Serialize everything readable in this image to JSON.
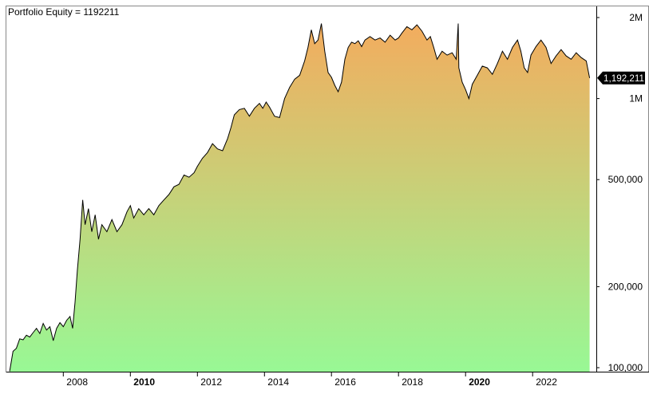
{
  "title": "Portfolio Equity = 1192211",
  "colors": {
    "background": "#ffffff",
    "line": "#000000",
    "fill_top": "#f3ac5e",
    "fill_bottom": "#98f895",
    "value_tag_bg": "#000000",
    "value_tag_text": "#ffffff"
  },
  "chart_data": {
    "type": "area",
    "title": "Portfolio Equity = 1192211",
    "xlabel": "",
    "ylabel": "",
    "y_scale": "log",
    "ylim": [
      95000,
      2150000
    ],
    "xlim": [
      2006.35,
      2023.9
    ],
    "grid": false,
    "legend": "none",
    "x_ticks": [
      {
        "value": 2008,
        "label": "2008",
        "bold": false
      },
      {
        "value": 2010,
        "label": "2010",
        "bold": true
      },
      {
        "value": 2012,
        "label": "2012",
        "bold": false
      },
      {
        "value": 2014,
        "label": "2014",
        "bold": false
      },
      {
        "value": 2016,
        "label": "2016",
        "bold": false
      },
      {
        "value": 2018,
        "label": "2018",
        "bold": false
      },
      {
        "value": 2020,
        "label": "2020",
        "bold": true
      },
      {
        "value": 2022,
        "label": "2022",
        "bold": false
      }
    ],
    "y_ticks": [
      {
        "value": 100000,
        "label": "100,000"
      },
      {
        "value": 200000,
        "label": "200,000"
      },
      {
        "value": 500000,
        "label": "500,000"
      },
      {
        "value": 1000000,
        "label": "1M"
      },
      {
        "value": 2000000,
        "label": "2M"
      }
    ],
    "last_value": {
      "value": 1192211,
      "label": "1,192,211"
    },
    "series": [
      {
        "points": [
          [
            2006.4,
            97000
          ],
          [
            2006.5,
            115000
          ],
          [
            2006.6,
            118000
          ],
          [
            2006.7,
            128000
          ],
          [
            2006.8,
            127000
          ],
          [
            2006.9,
            132000
          ],
          [
            2007.0,
            130000
          ],
          [
            2007.1,
            135000
          ],
          [
            2007.2,
            140000
          ],
          [
            2007.3,
            134000
          ],
          [
            2007.4,
            146000
          ],
          [
            2007.5,
            138000
          ],
          [
            2007.6,
            142000
          ],
          [
            2007.7,
            126000
          ],
          [
            2007.8,
            140000
          ],
          [
            2007.9,
            147000
          ],
          [
            2008.0,
            142000
          ],
          [
            2008.1,
            150000
          ],
          [
            2008.2,
            155000
          ],
          [
            2008.28,
            140000
          ],
          [
            2008.35,
            175000
          ],
          [
            2008.42,
            230000
          ],
          [
            2008.5,
            300000
          ],
          [
            2008.58,
            420000
          ],
          [
            2008.65,
            340000
          ],
          [
            2008.75,
            390000
          ],
          [
            2008.85,
            320000
          ],
          [
            2008.95,
            370000
          ],
          [
            2009.05,
            300000
          ],
          [
            2009.15,
            340000
          ],
          [
            2009.3,
            320000
          ],
          [
            2009.45,
            355000
          ],
          [
            2009.6,
            320000
          ],
          [
            2009.75,
            340000
          ],
          [
            2009.9,
            380000
          ],
          [
            2010.0,
            400000
          ],
          [
            2010.1,
            360000
          ],
          [
            2010.25,
            390000
          ],
          [
            2010.4,
            370000
          ],
          [
            2010.55,
            390000
          ],
          [
            2010.7,
            370000
          ],
          [
            2010.85,
            400000
          ],
          [
            2011.0,
            420000
          ],
          [
            2011.15,
            440000
          ],
          [
            2011.3,
            470000
          ],
          [
            2011.45,
            480000
          ],
          [
            2011.6,
            520000
          ],
          [
            2011.75,
            510000
          ],
          [
            2011.9,
            530000
          ],
          [
            2012.0,
            560000
          ],
          [
            2012.15,
            600000
          ],
          [
            2012.3,
            630000
          ],
          [
            2012.45,
            680000
          ],
          [
            2012.6,
            650000
          ],
          [
            2012.75,
            640000
          ],
          [
            2012.9,
            710000
          ],
          [
            2013.0,
            780000
          ],
          [
            2013.1,
            870000
          ],
          [
            2013.25,
            910000
          ],
          [
            2013.4,
            920000
          ],
          [
            2013.55,
            860000
          ],
          [
            2013.7,
            920000
          ],
          [
            2013.85,
            960000
          ],
          [
            2013.95,
            920000
          ],
          [
            2014.05,
            970000
          ],
          [
            2014.15,
            930000
          ],
          [
            2014.3,
            860000
          ],
          [
            2014.45,
            850000
          ],
          [
            2014.6,
            1000000
          ],
          [
            2014.75,
            1100000
          ],
          [
            2014.9,
            1180000
          ],
          [
            2015.05,
            1220000
          ],
          [
            2015.2,
            1380000
          ],
          [
            2015.3,
            1550000
          ],
          [
            2015.4,
            1800000
          ],
          [
            2015.5,
            1600000
          ],
          [
            2015.6,
            1650000
          ],
          [
            2015.7,
            1900000
          ],
          [
            2015.8,
            1500000
          ],
          [
            2015.9,
            1250000
          ],
          [
            2016.0,
            1200000
          ],
          [
            2016.1,
            1120000
          ],
          [
            2016.2,
            1060000
          ],
          [
            2016.3,
            1150000
          ],
          [
            2016.4,
            1400000
          ],
          [
            2016.5,
            1550000
          ],
          [
            2016.6,
            1620000
          ],
          [
            2016.7,
            1600000
          ],
          [
            2016.8,
            1640000
          ],
          [
            2016.9,
            1560000
          ],
          [
            2017.0,
            1650000
          ],
          [
            2017.15,
            1700000
          ],
          [
            2017.3,
            1650000
          ],
          [
            2017.45,
            1680000
          ],
          [
            2017.6,
            1620000
          ],
          [
            2017.75,
            1720000
          ],
          [
            2017.9,
            1650000
          ],
          [
            2018.0,
            1680000
          ],
          [
            2018.1,
            1750000
          ],
          [
            2018.25,
            1850000
          ],
          [
            2018.4,
            1800000
          ],
          [
            2018.55,
            1880000
          ],
          [
            2018.7,
            1780000
          ],
          [
            2018.85,
            1650000
          ],
          [
            2018.95,
            1700000
          ],
          [
            2019.05,
            1550000
          ],
          [
            2019.15,
            1400000
          ],
          [
            2019.3,
            1500000
          ],
          [
            2019.45,
            1450000
          ],
          [
            2019.6,
            1480000
          ],
          [
            2019.72,
            1400000
          ],
          [
            2019.78,
            1900000
          ],
          [
            2019.8,
            1300000
          ],
          [
            2019.9,
            1150000
          ],
          [
            2020.0,
            1080000
          ],
          [
            2020.1,
            1000000
          ],
          [
            2020.2,
            1130000
          ],
          [
            2020.35,
            1220000
          ],
          [
            2020.5,
            1320000
          ],
          [
            2020.65,
            1300000
          ],
          [
            2020.8,
            1230000
          ],
          [
            2020.95,
            1350000
          ],
          [
            2021.1,
            1500000
          ],
          [
            2021.25,
            1400000
          ],
          [
            2021.4,
            1550000
          ],
          [
            2021.55,
            1650000
          ],
          [
            2021.65,
            1500000
          ],
          [
            2021.75,
            1300000
          ],
          [
            2021.85,
            1250000
          ],
          [
            2021.95,
            1450000
          ],
          [
            2022.1,
            1560000
          ],
          [
            2022.25,
            1650000
          ],
          [
            2022.4,
            1550000
          ],
          [
            2022.55,
            1350000
          ],
          [
            2022.7,
            1440000
          ],
          [
            2022.85,
            1520000
          ],
          [
            2023.0,
            1440000
          ],
          [
            2023.15,
            1400000
          ],
          [
            2023.3,
            1480000
          ],
          [
            2023.45,
            1420000
          ],
          [
            2023.6,
            1380000
          ],
          [
            2023.7,
            1192211
          ]
        ]
      }
    ]
  }
}
